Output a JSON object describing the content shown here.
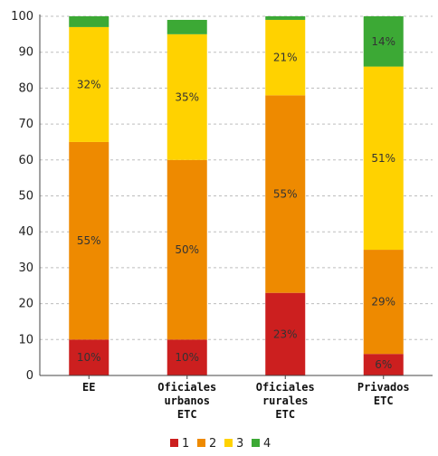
{
  "chart_data": {
    "type": "bar",
    "stacked": true,
    "title": "",
    "xlabel": "",
    "ylabel": "",
    "ylim": [
      0,
      100
    ],
    "yticks": [
      0,
      10,
      20,
      30,
      40,
      50,
      60,
      70,
      80,
      90,
      100
    ],
    "grid": true,
    "legend_position": "bottom",
    "categories": [
      [
        "EE"
      ],
      [
        "Oficiales",
        "urbanos",
        "ETC"
      ],
      [
        "Oficiales",
        "rurales",
        "ETC"
      ],
      [
        "Privados",
        "ETC"
      ]
    ],
    "series": [
      {
        "name": "1",
        "color": "#cc1f1f",
        "values": [
          10,
          10,
          23,
          6
        ],
        "labels": [
          "10%",
          "10%",
          "23%",
          "6%"
        ]
      },
      {
        "name": "2",
        "color": "#ee8a00",
        "values": [
          55,
          50,
          55,
          29
        ],
        "labels": [
          "55%",
          "50%",
          "55%",
          "29%"
        ]
      },
      {
        "name": "3",
        "color": "#ffd200",
        "values": [
          32,
          35,
          21,
          51
        ],
        "labels": [
          "32%",
          "35%",
          "21%",
          "51%"
        ]
      },
      {
        "name": "4",
        "color": "#3ca935",
        "values": [
          3,
          4,
          1,
          14
        ],
        "labels": [
          "",
          "",
          "",
          "14%"
        ]
      }
    ]
  }
}
